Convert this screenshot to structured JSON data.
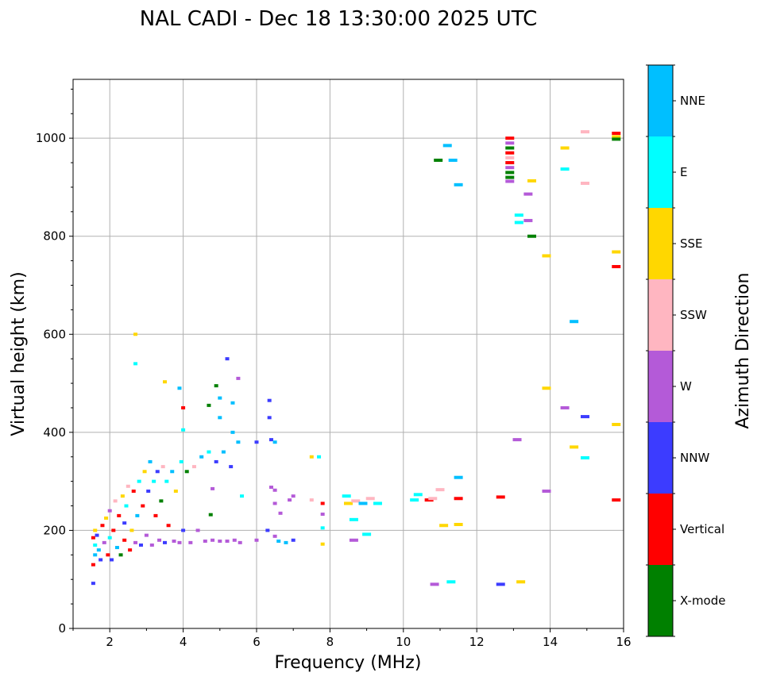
{
  "chart_data": {
    "type": "scatter",
    "title": "NAL CADI - Dec 18 13:30:00 2025 UTC",
    "xlabel": "Frequency (MHz)",
    "ylabel": "Virtual height (km)",
    "xlim": [
      1,
      16
    ],
    "ylim": [
      0,
      1120
    ],
    "xticks": [
      2,
      4,
      6,
      8,
      10,
      12,
      14,
      16
    ],
    "yticks": [
      0,
      200,
      400,
      600,
      800,
      1000
    ],
    "grid": true,
    "colorbar": {
      "title": "Azimuth Direction",
      "categories": [
        {
          "label": "X-mode",
          "color": "#008000"
        },
        {
          "label": "Vertical",
          "color": "#ff0000"
        },
        {
          "label": "NNW",
          "color": "#3c3cff"
        },
        {
          "label": "W",
          "color": "#b45ad8"
        },
        {
          "label": "SSW",
          "color": "#ffb6c1"
        },
        {
          "label": "SSE",
          "color": "#ffd700"
        },
        {
          "label": "E",
          "color": "#00ffff"
        },
        {
          "label": "NNE",
          "color": "#00bfff"
        }
      ]
    },
    "points": [
      {
        "f": 1.55,
        "h": 92,
        "c": "NNW"
      },
      {
        "f": 1.55,
        "h": 130,
        "c": "Vertical"
      },
      {
        "f": 1.6,
        "h": 150,
        "c": "NNE"
      },
      {
        "f": 1.6,
        "h": 170,
        "c": "E"
      },
      {
        "f": 1.55,
        "h": 185,
        "c": "Vertical"
      },
      {
        "f": 1.6,
        "h": 200,
        "c": "SSE"
      },
      {
        "f": 1.65,
        "h": 190,
        "c": "NNW"
      },
      {
        "f": 1.7,
        "h": 160,
        "c": "NNE"
      },
      {
        "f": 1.75,
        "h": 140,
        "c": "NNW"
      },
      {
        "f": 1.8,
        "h": 210,
        "c": "Vertical"
      },
      {
        "f": 1.85,
        "h": 175,
        "c": "W"
      },
      {
        "f": 1.9,
        "h": 225,
        "c": "SSE"
      },
      {
        "f": 1.95,
        "h": 150,
        "c": "Vertical"
      },
      {
        "f": 2.0,
        "h": 185,
        "c": "E"
      },
      {
        "f": 2.0,
        "h": 240,
        "c": "W"
      },
      {
        "f": 2.05,
        "h": 140,
        "c": "NNW"
      },
      {
        "f": 2.1,
        "h": 200,
        "c": "Vertical"
      },
      {
        "f": 2.15,
        "h": 260,
        "c": "SSW"
      },
      {
        "f": 2.2,
        "h": 165,
        "c": "NNE"
      },
      {
        "f": 2.25,
        "h": 230,
        "c": "Vertical"
      },
      {
        "f": 2.3,
        "h": 150,
        "c": "X-mode"
      },
      {
        "f": 2.35,
        "h": 270,
        "c": "SSE"
      },
      {
        "f": 2.4,
        "h": 180,
        "c": "Vertical"
      },
      {
        "f": 2.4,
        "h": 215,
        "c": "NNW"
      },
      {
        "f": 2.45,
        "h": 250,
        "c": "E"
      },
      {
        "f": 2.5,
        "h": 290,
        "c": "SSW"
      },
      {
        "f": 2.55,
        "h": 160,
        "c": "Vertical"
      },
      {
        "f": 2.6,
        "h": 200,
        "c": "SSE"
      },
      {
        "f": 2.65,
        "h": 280,
        "c": "Vertical"
      },
      {
        "f": 2.7,
        "h": 175,
        "c": "W"
      },
      {
        "f": 2.75,
        "h": 230,
        "c": "NNE"
      },
      {
        "f": 2.8,
        "h": 300,
        "c": "E"
      },
      {
        "f": 2.85,
        "h": 170,
        "c": "NNW"
      },
      {
        "f": 2.9,
        "h": 250,
        "c": "Vertical"
      },
      {
        "f": 2.95,
        "h": 320,
        "c": "SSE"
      },
      {
        "f": 3.0,
        "h": 190,
        "c": "W"
      },
      {
        "f": 3.05,
        "h": 280,
        "c": "NNW"
      },
      {
        "f": 3.1,
        "h": 340,
        "c": "NNE"
      },
      {
        "f": 3.15,
        "h": 170,
        "c": "W"
      },
      {
        "f": 3.2,
        "h": 300,
        "c": "E"
      },
      {
        "f": 3.25,
        "h": 230,
        "c": "Vertical"
      },
      {
        "f": 3.3,
        "h": 320,
        "c": "NNW"
      },
      {
        "f": 3.35,
        "h": 180,
        "c": "W"
      },
      {
        "f": 3.4,
        "h": 260,
        "c": "X-mode"
      },
      {
        "f": 3.45,
        "h": 330,
        "c": "SSW"
      },
      {
        "f": 3.5,
        "h": 175,
        "c": "NNW"
      },
      {
        "f": 3.55,
        "h": 300,
        "c": "E"
      },
      {
        "f": 3.6,
        "h": 210,
        "c": "Vertical"
      },
      {
        "f": 3.7,
        "h": 320,
        "c": "NNE"
      },
      {
        "f": 3.75,
        "h": 178,
        "c": "W"
      },
      {
        "f": 3.8,
        "h": 280,
        "c": "SSE"
      },
      {
        "f": 3.9,
        "h": 175,
        "c": "W"
      },
      {
        "f": 3.95,
        "h": 340,
        "c": "E"
      },
      {
        "f": 4.0,
        "h": 200,
        "c": "NNW"
      },
      {
        "f": 4.1,
        "h": 320,
        "c": "X-mode"
      },
      {
        "f": 4.2,
        "h": 175,
        "c": "W"
      },
      {
        "f": 4.3,
        "h": 330,
        "c": "SSW"
      },
      {
        "f": 4.4,
        "h": 200,
        "c": "W"
      },
      {
        "f": 4.5,
        "h": 350,
        "c": "NNE"
      },
      {
        "f": 4.6,
        "h": 178,
        "c": "W"
      },
      {
        "f": 4.7,
        "h": 360,
        "c": "E"
      },
      {
        "f": 4.8,
        "h": 180,
        "c": "W"
      },
      {
        "f": 4.9,
        "h": 340,
        "c": "NNW"
      },
      {
        "f": 5.0,
        "h": 178,
        "c": "W"
      },
      {
        "f": 5.1,
        "h": 360,
        "c": "NNE"
      },
      {
        "f": 5.2,
        "h": 178,
        "c": "W"
      },
      {
        "f": 5.3,
        "h": 330,
        "c": "NNW"
      },
      {
        "f": 5.4,
        "h": 180,
        "c": "W"
      },
      {
        "f": 5.5,
        "h": 380,
        "c": "NNE"
      },
      {
        "f": 5.55,
        "h": 175,
        "c": "W"
      },
      {
        "f": 5.6,
        "h": 270,
        "c": "E"
      },
      {
        "f": 2.7,
        "h": 600,
        "c": "SSE"
      },
      {
        "f": 2.7,
        "h": 540,
        "c": "E"
      },
      {
        "f": 3.5,
        "h": 503,
        "c": "SSE"
      },
      {
        "f": 3.9,
        "h": 490,
        "c": "NNE"
      },
      {
        "f": 4.0,
        "h": 450,
        "c": "Vertical"
      },
      {
        "f": 4.0,
        "h": 405,
        "c": "E"
      },
      {
        "f": 4.7,
        "h": 455,
        "c": "X-mode"
      },
      {
        "f": 4.9,
        "h": 495,
        "c": "X-mode"
      },
      {
        "f": 5.0,
        "h": 470,
        "c": "NNE"
      },
      {
        "f": 5.0,
        "h": 430,
        "c": "NNE"
      },
      {
        "f": 5.2,
        "h": 550,
        "c": "NNW"
      },
      {
        "f": 5.35,
        "h": 460,
        "c": "NNE"
      },
      {
        "f": 5.5,
        "h": 510,
        "c": "W"
      },
      {
        "f": 5.35,
        "h": 400,
        "c": "NNE"
      },
      {
        "f": 4.75,
        "h": 232,
        "c": "X-mode"
      },
      {
        "f": 4.8,
        "h": 285,
        "c": "W"
      },
      {
        "f": 6.0,
        "h": 380,
        "c": "NNW"
      },
      {
        "f": 6.35,
        "h": 465,
        "c": "NNW"
      },
      {
        "f": 6.35,
        "h": 430,
        "c": "NNW"
      },
      {
        "f": 6.4,
        "h": 385,
        "c": "NNW"
      },
      {
        "f": 6.5,
        "h": 380,
        "c": "NNE"
      },
      {
        "f": 6.4,
        "h": 288,
        "c": "W"
      },
      {
        "f": 6.5,
        "h": 282,
        "c": "W"
      },
      {
        "f": 6.5,
        "h": 255,
        "c": "W"
      },
      {
        "f": 6.65,
        "h": 235,
        "c": "W"
      },
      {
        "f": 6.9,
        "h": 262,
        "c": "W"
      },
      {
        "f": 7.0,
        "h": 270,
        "c": "W"
      },
      {
        "f": 6.3,
        "h": 200,
        "c": "NNW"
      },
      {
        "f": 6.5,
        "h": 188,
        "c": "W"
      },
      {
        "f": 6.6,
        "h": 178,
        "c": "NNE"
      },
      {
        "f": 6.8,
        "h": 175,
        "c": "NNE"
      },
      {
        "f": 7.0,
        "h": 180,
        "c": "NNW"
      },
      {
        "f": 6.0,
        "h": 180,
        "c": "W"
      },
      {
        "f": 7.5,
        "h": 262,
        "c": "SSW"
      },
      {
        "f": 7.8,
        "h": 255,
        "c": "Vertical"
      },
      {
        "f": 7.8,
        "h": 233,
        "c": "W"
      },
      {
        "f": 7.8,
        "h": 205,
        "c": "E"
      },
      {
        "f": 7.8,
        "h": 172,
        "c": "SSE"
      },
      {
        "f": 7.5,
        "h": 350,
        "c": "SSE"
      },
      {
        "f": 7.7,
        "h": 350,
        "c": "E"
      },
      {
        "f": 8.45,
        "h": 270,
        "c": "E"
      },
      {
        "f": 8.5,
        "h": 255,
        "c": "SSE"
      },
      {
        "f": 8.7,
        "h": 260,
        "c": "SSW"
      },
      {
        "f": 8.9,
        "h": 255,
        "c": "NNE"
      },
      {
        "f": 9.1,
        "h": 265,
        "c": "SSW"
      },
      {
        "f": 9.3,
        "h": 255,
        "c": "E"
      },
      {
        "f": 8.65,
        "h": 222,
        "c": "E"
      },
      {
        "f": 9.0,
        "h": 192,
        "c": "E"
      },
      {
        "f": 8.65,
        "h": 180,
        "c": "W"
      },
      {
        "f": 10.3,
        "h": 262,
        "c": "E"
      },
      {
        "f": 10.4,
        "h": 273,
        "c": "E"
      },
      {
        "f": 10.7,
        "h": 262,
        "c": "Vertical"
      },
      {
        "f": 10.8,
        "h": 265,
        "c": "SSW"
      },
      {
        "f": 11.0,
        "h": 283,
        "c": "SSW"
      },
      {
        "f": 11.1,
        "h": 210,
        "c": "SSE"
      },
      {
        "f": 11.5,
        "h": 212,
        "c": "SSE"
      },
      {
        "f": 11.5,
        "h": 265,
        "c": "Vertical"
      },
      {
        "f": 11.5,
        "h": 308,
        "c": "NNE"
      },
      {
        "f": 10.85,
        "h": 90,
        "c": "W"
      },
      {
        "f": 11.3,
        "h": 95,
        "c": "E"
      },
      {
        "f": 12.65,
        "h": 90,
        "c": "NNW"
      },
      {
        "f": 13.2,
        "h": 95,
        "c": "SSE"
      },
      {
        "f": 12.65,
        "h": 268,
        "c": "Vertical"
      },
      {
        "f": 13.1,
        "h": 385,
        "c": "W"
      },
      {
        "f": 13.9,
        "h": 280,
        "c": "W"
      },
      {
        "f": 13.9,
        "h": 490,
        "c": "SSE"
      },
      {
        "f": 14.4,
        "h": 450,
        "c": "W"
      },
      {
        "f": 14.65,
        "h": 370,
        "c": "SSE"
      },
      {
        "f": 14.95,
        "h": 432,
        "c": "NNW"
      },
      {
        "f": 14.95,
        "h": 348,
        "c": "E"
      },
      {
        "f": 15.8,
        "h": 262,
        "c": "Vertical"
      },
      {
        "f": 15.8,
        "h": 416,
        "c": "SSE"
      },
      {
        "f": 14.65,
        "h": 626,
        "c": "NNE"
      },
      {
        "f": 13.9,
        "h": 760,
        "c": "SSE"
      },
      {
        "f": 15.8,
        "h": 738,
        "c": "Vertical"
      },
      {
        "f": 15.8,
        "h": 768,
        "c": "SSE"
      },
      {
        "f": 13.5,
        "h": 800,
        "c": "X-mode"
      },
      {
        "f": 13.4,
        "h": 832,
        "c": "W"
      },
      {
        "f": 13.15,
        "h": 828,
        "c": "E"
      },
      {
        "f": 13.15,
        "h": 843,
        "c": "E"
      },
      {
        "f": 13.4,
        "h": 886,
        "c": "W"
      },
      {
        "f": 13.5,
        "h": 913,
        "c": "SSE"
      },
      {
        "f": 14.4,
        "h": 937,
        "c": "E"
      },
      {
        "f": 14.4,
        "h": 980,
        "c": "SSE"
      },
      {
        "f": 14.95,
        "h": 908,
        "c": "SSW"
      },
      {
        "f": 14.95,
        "h": 1013,
        "c": "SSW"
      },
      {
        "f": 15.8,
        "h": 1010,
        "c": "Vertical"
      },
      {
        "f": 15.8,
        "h": 1003,
        "c": "SSE"
      },
      {
        "f": 15.8,
        "h": 998,
        "c": "X-mode"
      },
      {
        "f": 11.2,
        "h": 985,
        "c": "NNE"
      },
      {
        "f": 10.95,
        "h": 955,
        "c": "X-mode"
      },
      {
        "f": 11.35,
        "h": 955,
        "c": "NNE"
      },
      {
        "f": 11.5,
        "h": 905,
        "c": "NNE"
      },
      {
        "f": 12.9,
        "h": 1000,
        "c": "Vertical"
      },
      {
        "f": 12.9,
        "h": 990,
        "c": "W"
      },
      {
        "f": 12.9,
        "h": 980,
        "c": "X-mode"
      },
      {
        "f": 12.9,
        "h": 970,
        "c": "Vertical"
      },
      {
        "f": 12.9,
        "h": 960,
        "c": "SSW"
      },
      {
        "f": 12.9,
        "h": 950,
        "c": "Vertical"
      },
      {
        "f": 12.9,
        "h": 940,
        "c": "W"
      },
      {
        "f": 12.9,
        "h": 930,
        "c": "X-mode"
      },
      {
        "f": 12.9,
        "h": 920,
        "c": "X-mode"
      },
      {
        "f": 12.9,
        "h": 912,
        "c": "W"
      }
    ]
  }
}
